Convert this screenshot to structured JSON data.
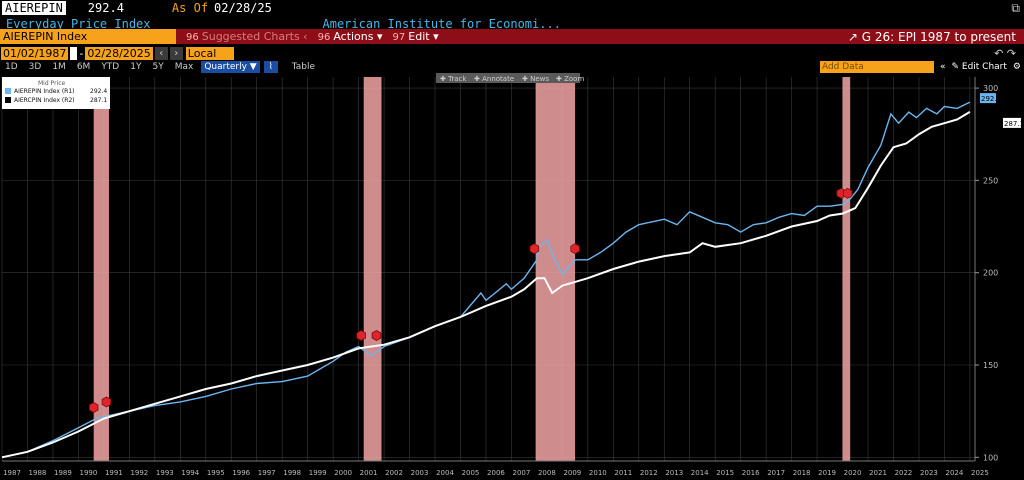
{
  "header": {
    "ticker": "AIEREPIN",
    "value": "292.4",
    "as_of_label": "As Of",
    "as_of_date": "02/28/25",
    "name": "Everyday Price Index",
    "institution": "American Institute for Economi...",
    "pop_icon": "popout-icon"
  },
  "toolbar": {
    "security": "AIEREPIN Index",
    "suggested_num": "96",
    "suggested": "Suggested Charts",
    "actions_num": "96",
    "actions": "Actions",
    "edit_num": "97",
    "edit": "Edit",
    "chart_title": "G 26: EPI 1987 to present"
  },
  "dates": {
    "start": "01/02/1987",
    "end": "02/28/2025",
    "currency": "Local CCY"
  },
  "ranges": [
    "1D",
    "3D",
    "1M",
    "6M",
    "YTD",
    "1Y",
    "5Y",
    "Max"
  ],
  "period": "Quarterly",
  "table_label": "Table",
  "add_data_placeholder": "Add Data",
  "edit_chart": "Edit Chart",
  "chart_tools": [
    "Track",
    "Annotate",
    "News",
    "Zoom"
  ],
  "legend": {
    "title": "Mid Price",
    "items": [
      {
        "label": "AIEREPIN Index (R1)",
        "value": "292.4",
        "color": "#6cb6ef"
      },
      {
        "label": "AIERCPIN Index (R2)",
        "value": "287.1",
        "color": "#ffffff"
      }
    ]
  },
  "chart_data": {
    "type": "line",
    "x_axis_years": [
      "1987",
      "1988",
      "1989",
      "1990",
      "1991",
      "1992",
      "1993",
      "1994",
      "1995",
      "1996",
      "1997",
      "1998",
      "1999",
      "2000",
      "2001",
      "2002",
      "2003",
      "2004",
      "2005",
      "2006",
      "2007",
      "2008",
      "2009",
      "2010",
      "2011",
      "2012",
      "2013",
      "2014",
      "2015",
      "2016",
      "2017",
      "2018",
      "2019",
      "2020",
      "2021",
      "2022",
      "2023",
      "2024",
      "2025"
    ],
    "xlim": [
      1987.0,
      2025.2
    ],
    "ylim": [
      98,
      306
    ],
    "y_ticks": [
      100,
      150,
      200,
      250,
      300
    ],
    "grid": true,
    "shaded_periods": [
      [
        1990.6,
        1991.2
      ],
      [
        2001.2,
        2001.9
      ],
      [
        2007.95,
        2009.5
      ],
      [
        2020.0,
        2020.3
      ]
    ],
    "markers": [
      {
        "x": 1990.6,
        "y": 127
      },
      {
        "x": 1991.1,
        "y": 130
      },
      {
        "x": 2001.1,
        "y": 166
      },
      {
        "x": 2001.7,
        "y": 166
      },
      {
        "x": 2007.9,
        "y": 213
      },
      {
        "x": 2009.5,
        "y": 213
      },
      {
        "x": 2019.95,
        "y": 243
      },
      {
        "x": 2020.2,
        "y": 243
      }
    ],
    "series": [
      {
        "name": "AIEREPIN Index (R1)",
        "color": "#6cb6ef",
        "last": 292.4,
        "x": [
          1987,
          1988,
          1989,
          1990,
          1990.7,
          1991,
          1992,
          1993,
          1994,
          1995,
          1996,
          1997,
          1998,
          1999,
          2000,
          2000.5,
          2001,
          2001.5,
          2002,
          2003,
          2004,
          2005,
          2005.8,
          2006,
          2006.8,
          2007,
          2007.5,
          2008,
          2008.1,
          2008.4,
          2008.6,
          2009,
          2009.5,
          2010,
          2010.5,
          2011,
          2011.5,
          2012,
          2013,
          2013.5,
          2014,
          2014.5,
          2015,
          2015.5,
          2016,
          2016.5,
          2017,
          2017.5,
          2018,
          2018.5,
          2019,
          2019.5,
          2020,
          2020.3,
          2020.6,
          2021,
          2021.5,
          2021.9,
          2022.2,
          2022.6,
          2022.9,
          2023.3,
          2023.7,
          2024,
          2024.5,
          2025
        ],
        "y": [
          100,
          103,
          109,
          116,
          121,
          122,
          125,
          128,
          130,
          133,
          137,
          140,
          141,
          144,
          152,
          157,
          160,
          155,
          160,
          165,
          171,
          176,
          189,
          185,
          194,
          191,
          197,
          207,
          214,
          218,
          210,
          199,
          207,
          207,
          211,
          216,
          222,
          226,
          229,
          226,
          233,
          230,
          227,
          226,
          222,
          226,
          227,
          230,
          232,
          231,
          236,
          236,
          237,
          240,
          245,
          257,
          269,
          286,
          281,
          287,
          284,
          289,
          286,
          290,
          289,
          292.4
        ]
      },
      {
        "name": "AIERCPIN Index (R2)",
        "color": "#ffffff",
        "last": 287.1,
        "x": [
          1987,
          1988,
          1989,
          1990,
          1991,
          1992,
          1993,
          1994,
          1995,
          1996,
          1997,
          1998,
          1999,
          2000,
          2001,
          2002,
          2003,
          2004,
          2005,
          2006,
          2007,
          2007.5,
          2008,
          2008.3,
          2008.6,
          2009,
          2009.5,
          2010,
          2011,
          2012,
          2013,
          2014,
          2014.5,
          2015,
          2016,
          2017,
          2018,
          2019,
          2019.5,
          2020,
          2020.5,
          2021,
          2021.5,
          2022,
          2022.5,
          2023,
          2023.5,
          2024,
          2024.5,
          2025
        ],
        "y": [
          100,
          103,
          108,
          114,
          121,
          125,
          129,
          133,
          137,
          140,
          144,
          147,
          150,
          154,
          159,
          161,
          165,
          171,
          176,
          182,
          187,
          191,
          197,
          197,
          189,
          193,
          195,
          197,
          202,
          206,
          209,
          211,
          216,
          214,
          216,
          220,
          225,
          228,
          231,
          232,
          235,
          246,
          258,
          268,
          270,
          275,
          279,
          281,
          283,
          287.1
        ]
      }
    ]
  }
}
